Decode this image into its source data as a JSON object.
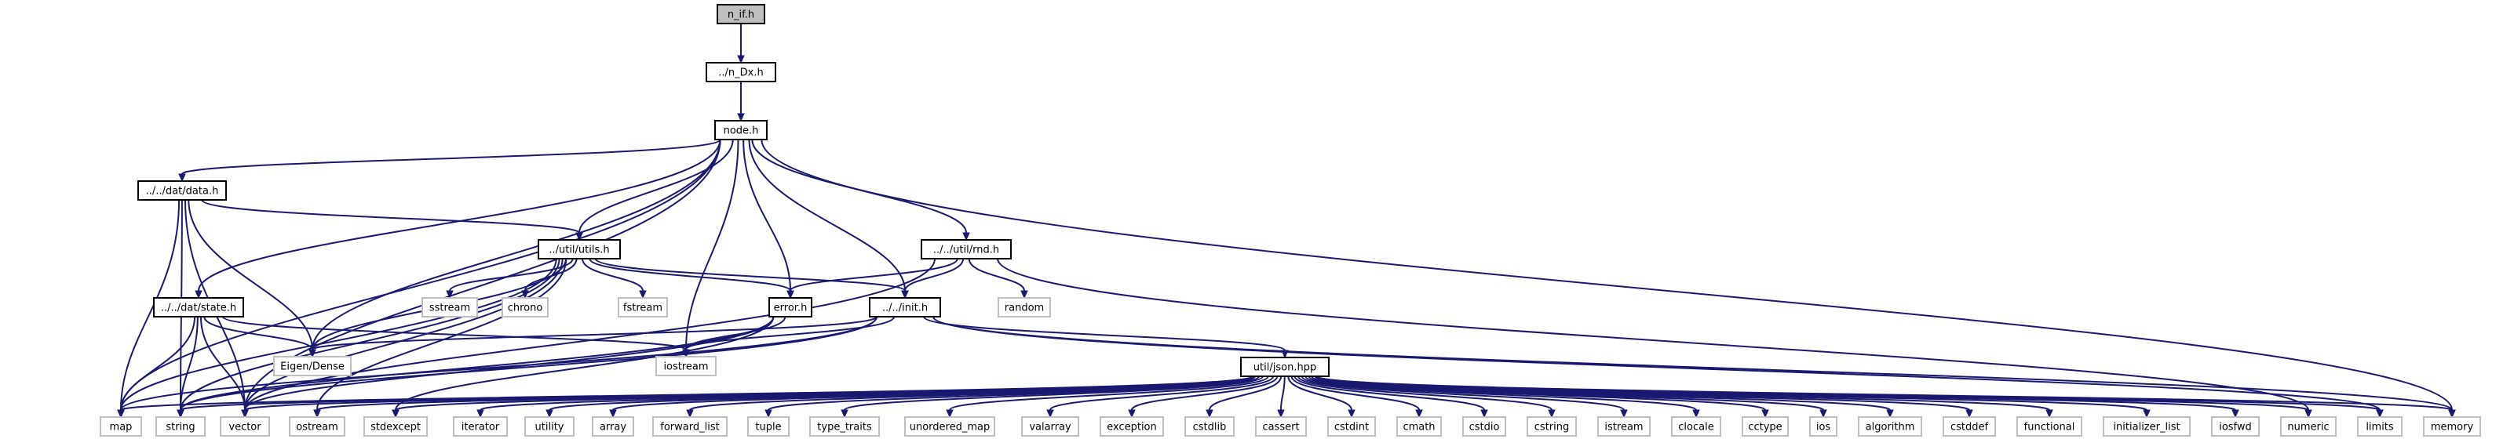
{
  "nodes": [
    {
      "id": "n_if",
      "label": "n_if.h",
      "style": "root"
    },
    {
      "id": "dx",
      "label": "../n_Dx.h",
      "style": "local"
    },
    {
      "id": "node",
      "label": "node.h",
      "style": "local"
    },
    {
      "id": "data",
      "label": "../../dat/data.h",
      "style": "local"
    },
    {
      "id": "utils",
      "label": "../util/utils.h",
      "style": "local"
    },
    {
      "id": "rnd",
      "label": "../../util/rnd.h",
      "style": "local"
    },
    {
      "id": "state",
      "label": "../../dat/state.h",
      "style": "local"
    },
    {
      "id": "error",
      "label": "error.h",
      "style": "local"
    },
    {
      "id": "init",
      "label": "../../init.h",
      "style": "local"
    },
    {
      "id": "json",
      "label": "util/json.hpp",
      "style": "local"
    },
    {
      "id": "sstream",
      "label": "sstream",
      "style": "system"
    },
    {
      "id": "chrono",
      "label": "chrono",
      "style": "system"
    },
    {
      "id": "fstream",
      "label": "fstream",
      "style": "system"
    },
    {
      "id": "random",
      "label": "random",
      "style": "system"
    },
    {
      "id": "eigen",
      "label": "Eigen/Dense",
      "style": "system"
    },
    {
      "id": "iostream",
      "label": "iostream",
      "style": "system"
    },
    {
      "id": "map",
      "label": "map",
      "style": "system"
    },
    {
      "id": "string",
      "label": "string",
      "style": "system"
    },
    {
      "id": "vector",
      "label": "vector",
      "style": "system"
    },
    {
      "id": "ostream",
      "label": "ostream",
      "style": "system"
    },
    {
      "id": "stdexcept",
      "label": "stdexcept",
      "style": "system"
    },
    {
      "id": "iterator",
      "label": "iterator",
      "style": "system"
    },
    {
      "id": "utility",
      "label": "utility",
      "style": "system"
    },
    {
      "id": "array",
      "label": "array",
      "style": "system"
    },
    {
      "id": "forward_list",
      "label": "forward_list",
      "style": "system"
    },
    {
      "id": "tuple",
      "label": "tuple",
      "style": "system"
    },
    {
      "id": "type_traits",
      "label": "type_traits",
      "style": "system"
    },
    {
      "id": "unordered_map",
      "label": "unordered_map",
      "style": "system"
    },
    {
      "id": "valarray",
      "label": "valarray",
      "style": "system"
    },
    {
      "id": "exception",
      "label": "exception",
      "style": "system"
    },
    {
      "id": "cstdlib",
      "label": "cstdlib",
      "style": "system"
    },
    {
      "id": "cassert",
      "label": "cassert",
      "style": "system"
    },
    {
      "id": "cstdint",
      "label": "cstdint",
      "style": "system"
    },
    {
      "id": "cmath",
      "label": "cmath",
      "style": "system"
    },
    {
      "id": "cstdio",
      "label": "cstdio",
      "style": "system"
    },
    {
      "id": "cstring",
      "label": "cstring",
      "style": "system"
    },
    {
      "id": "istream",
      "label": "istream",
      "style": "system"
    },
    {
      "id": "clocale",
      "label": "clocale",
      "style": "system"
    },
    {
      "id": "cctype",
      "label": "cctype",
      "style": "system"
    },
    {
      "id": "ios",
      "label": "ios",
      "style": "system"
    },
    {
      "id": "algorithm",
      "label": "algorithm",
      "style": "system"
    },
    {
      "id": "cstddef",
      "label": "cstddef",
      "style": "system"
    },
    {
      "id": "functional",
      "label": "functional",
      "style": "system"
    },
    {
      "id": "initializer_list",
      "label": "initializer_list",
      "style": "system"
    },
    {
      "id": "iosfwd",
      "label": "iosfwd",
      "style": "system"
    },
    {
      "id": "numeric",
      "label": "numeric",
      "style": "system"
    },
    {
      "id": "limits",
      "label": "limits",
      "style": "system"
    },
    {
      "id": "memory",
      "label": "memory",
      "style": "system"
    }
  ],
  "edges": [
    [
      "n_if",
      "dx"
    ],
    [
      "dx",
      "node"
    ],
    [
      "node",
      "data"
    ],
    [
      "node",
      "state"
    ],
    [
      "node",
      "utils"
    ],
    [
      "node",
      "rnd"
    ],
    [
      "node",
      "error"
    ],
    [
      "node",
      "init"
    ],
    [
      "node",
      "eigen"
    ],
    [
      "node",
      "iostream"
    ],
    [
      "node",
      "map"
    ],
    [
      "node",
      "vector"
    ],
    [
      "node",
      "memory"
    ],
    [
      "data",
      "utils"
    ],
    [
      "data",
      "eigen"
    ],
    [
      "data",
      "map"
    ],
    [
      "data",
      "string"
    ],
    [
      "data",
      "vector"
    ],
    [
      "utils",
      "error"
    ],
    [
      "utils",
      "init"
    ],
    [
      "utils",
      "sstream"
    ],
    [
      "utils",
      "chrono"
    ],
    [
      "utils",
      "fstream"
    ],
    [
      "utils",
      "eigen"
    ],
    [
      "utils",
      "map"
    ],
    [
      "utils",
      "string"
    ],
    [
      "utils",
      "vector"
    ],
    [
      "utils",
      "ostream"
    ],
    [
      "rnd",
      "error"
    ],
    [
      "rnd",
      "init"
    ],
    [
      "rnd",
      "random"
    ],
    [
      "rnd",
      "vector"
    ],
    [
      "rnd",
      "numeric"
    ],
    [
      "state",
      "eigen"
    ],
    [
      "state",
      "iostream"
    ],
    [
      "state",
      "map"
    ],
    [
      "state",
      "string"
    ],
    [
      "state",
      "vector"
    ],
    [
      "error",
      "iostream"
    ],
    [
      "error",
      "string"
    ],
    [
      "error",
      "vector"
    ],
    [
      "error",
      "stdexcept"
    ],
    [
      "init",
      "eigen"
    ],
    [
      "init",
      "iostream"
    ],
    [
      "init",
      "json"
    ],
    [
      "init",
      "string"
    ],
    [
      "init",
      "map"
    ],
    [
      "init",
      "memory"
    ],
    [
      "init",
      "limits"
    ],
    [
      "json",
      "map"
    ],
    [
      "json",
      "string"
    ],
    [
      "json",
      "vector"
    ],
    [
      "json",
      "ostream"
    ],
    [
      "json",
      "stdexcept"
    ],
    [
      "json",
      "iterator"
    ],
    [
      "json",
      "utility"
    ],
    [
      "json",
      "array"
    ],
    [
      "json",
      "forward_list"
    ],
    [
      "json",
      "tuple"
    ],
    [
      "json",
      "type_traits"
    ],
    [
      "json",
      "unordered_map"
    ],
    [
      "json",
      "valarray"
    ],
    [
      "json",
      "exception"
    ],
    [
      "json",
      "cstdlib"
    ],
    [
      "json",
      "cassert"
    ],
    [
      "json",
      "cstdint"
    ],
    [
      "json",
      "cmath"
    ],
    [
      "json",
      "cstdio"
    ],
    [
      "json",
      "cstring"
    ],
    [
      "json",
      "istream"
    ],
    [
      "json",
      "clocale"
    ],
    [
      "json",
      "cctype"
    ],
    [
      "json",
      "ios"
    ],
    [
      "json",
      "algorithm"
    ],
    [
      "json",
      "cstddef"
    ],
    [
      "json",
      "functional"
    ],
    [
      "json",
      "initializer_list"
    ],
    [
      "json",
      "iosfwd"
    ],
    [
      "json",
      "numeric"
    ],
    [
      "json",
      "limits"
    ],
    [
      "json",
      "memory"
    ]
  ],
  "colors": {
    "edge": "#191970",
    "root_fill": "#bfbfbf",
    "root_border": "#000000",
    "local_fill": "#ffffff",
    "local_border": "#000000",
    "system_fill": "#ffffff",
    "system_border": "#bfbfbf",
    "text": "#000000"
  }
}
